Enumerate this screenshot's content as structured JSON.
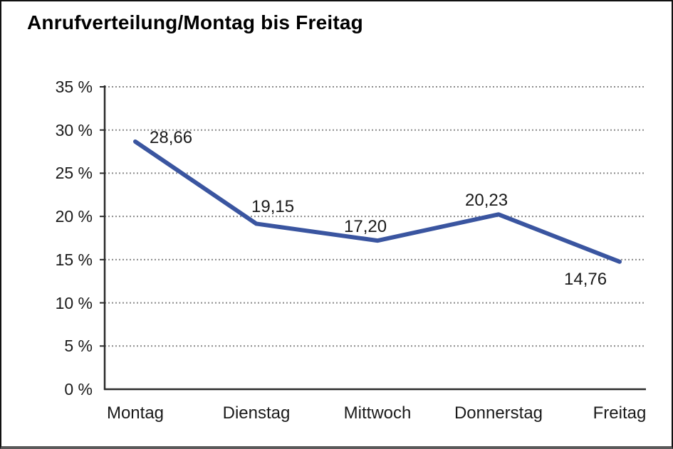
{
  "chart_data": {
    "type": "line",
    "title": "Anrufverteilung/Montag bis Freitag",
    "categories": [
      "Montag",
      "Dienstag",
      "Mittwoch",
      "Donnerstag",
      "Freitag"
    ],
    "values": [
      28.66,
      19.15,
      17.2,
      20.23,
      14.76
    ],
    "value_labels": [
      "28,66",
      "19,15",
      "17,20",
      "20,23",
      "14,76"
    ],
    "series_name": "Anrufverteilung",
    "xlabel": "",
    "ylabel": "",
    "ylim": [
      0,
      35
    ],
    "ytick_step": 5,
    "ytick_labels": [
      "0 %",
      "5 %",
      "10 %",
      "15 %",
      "20 %",
      "25 %",
      "30 %",
      "35 %"
    ],
    "grid": "horizontal-dotted",
    "legend": "none",
    "line_color": "#3a55a0",
    "axis_color": "#2b2b2b",
    "grid_color": "#8a8a8a",
    "text_color": "#1a1a1a"
  }
}
